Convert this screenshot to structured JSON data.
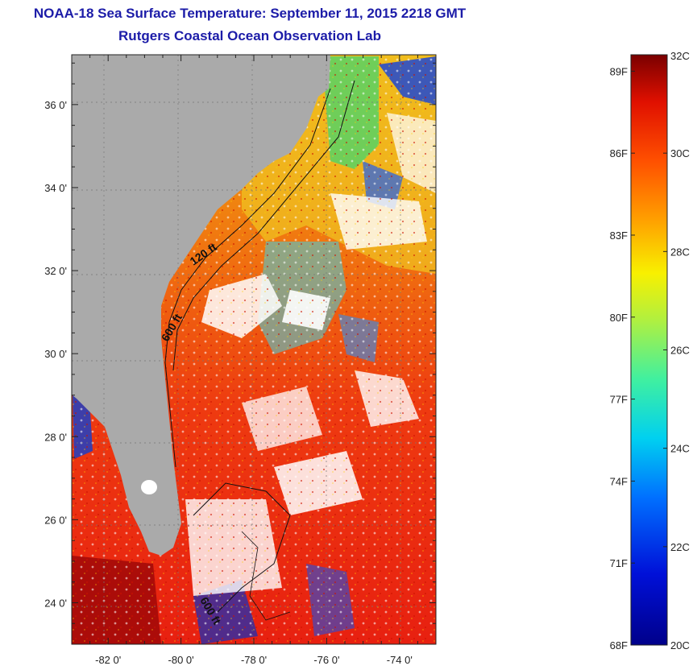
{
  "header": {
    "title": "NOAA-18 Sea Surface Temperature:  September 11, 2015 2218 GMT",
    "subtitle": "Rutgers Coastal Ocean Observation Lab"
  },
  "map": {
    "lat_range": [
      23,
      37.2
    ],
    "lon_range": [
      -83,
      -73
    ],
    "lat_ticks": [
      {
        "value": 24,
        "label": "24 0'"
      },
      {
        "value": 26,
        "label": "26 0'"
      },
      {
        "value": 28,
        "label": "28 0'"
      },
      {
        "value": 30,
        "label": "30 0'"
      },
      {
        "value": 32,
        "label": "32 0'"
      },
      {
        "value": 34,
        "label": "34 0'"
      },
      {
        "value": 36,
        "label": "36 0'"
      }
    ],
    "lon_ticks": [
      {
        "value": -82,
        "label": "-82 0'"
      },
      {
        "value": -80,
        "label": "-80 0'"
      },
      {
        "value": -78,
        "label": "-78 0'"
      },
      {
        "value": -76,
        "label": "-76 0'"
      },
      {
        "value": -74,
        "label": "-74 0'"
      }
    ],
    "isobath_labels": [
      "120 ft",
      "600 ft",
      "600 ft"
    ],
    "colors": {
      "land": "#aaaaaa",
      "cloud": "#ffffff"
    }
  },
  "colorbar": {
    "min_c": 20,
    "max_c": 32,
    "celsius_labels": [
      {
        "value": 32,
        "label": "32C"
      },
      {
        "value": 30,
        "label": "30C"
      },
      {
        "value": 28,
        "label": "28C"
      },
      {
        "value": 26,
        "label": "26C"
      },
      {
        "value": 24,
        "label": "24C"
      },
      {
        "value": 22,
        "label": "22C"
      },
      {
        "value": 20,
        "label": "20C"
      }
    ],
    "fahrenheit_labels": [
      {
        "value": 89,
        "label": "89F"
      },
      {
        "value": 86,
        "label": "86F"
      },
      {
        "value": 83,
        "label": "83F"
      },
      {
        "value": 80,
        "label": "80F"
      },
      {
        "value": 77,
        "label": "77F"
      },
      {
        "value": 74,
        "label": "74F"
      },
      {
        "value": 71,
        "label": "71F"
      },
      {
        "value": 68,
        "label": "68F"
      }
    ]
  }
}
